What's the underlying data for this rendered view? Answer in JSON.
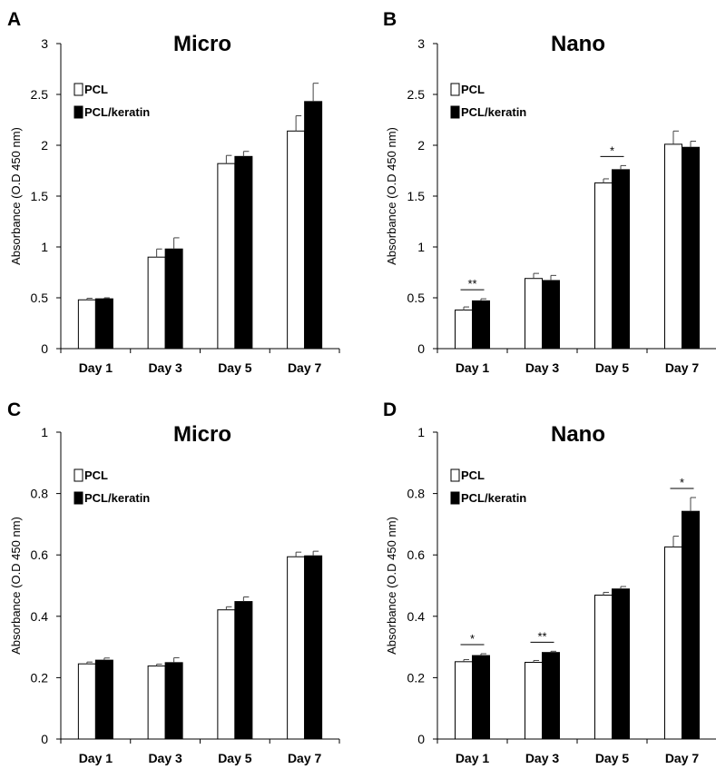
{
  "chart_data": [
    {
      "panel": "A",
      "type": "bar",
      "title": "Micro",
      "xlabel": "",
      "ylabel": "Absorbance (O.D 450 nm)",
      "ylim": [
        0,
        3
      ],
      "yticks": [
        "0",
        "0.5",
        "1",
        "1.5",
        "2",
        "2.5",
        "3"
      ],
      "ytick_values": [
        0,
        0.5,
        1,
        1.5,
        2,
        2.5,
        3
      ],
      "categories": [
        "Day 1",
        "Day 3",
        "Day 5",
        "Day 7"
      ],
      "legend_position": "top-left",
      "series": [
        {
          "name": "PCL",
          "fill": "#ffffff",
          "values": [
            0.48,
            0.9,
            1.82,
            2.14
          ],
          "errors": [
            0.015,
            0.08,
            0.08,
            0.15
          ]
        },
        {
          "name": "PCL/keratin",
          "fill": "#000000",
          "values": [
            0.49,
            0.98,
            1.89,
            2.43
          ],
          "errors": [
            0.01,
            0.11,
            0.05,
            0.18
          ]
        }
      ],
      "significance": []
    },
    {
      "panel": "B",
      "type": "bar",
      "title": "Nano",
      "xlabel": "",
      "ylabel": "Absorbance (O.D 450 nm)",
      "ylim": [
        0,
        3
      ],
      "yticks": [
        "0",
        "0.5",
        "1",
        "1.5",
        "2",
        "2.5",
        "3"
      ],
      "ytick_values": [
        0,
        0.5,
        1,
        1.5,
        2,
        2.5,
        3
      ],
      "categories": [
        "Day 1",
        "Day 3",
        "Day 5",
        "Day 7"
      ],
      "legend_position": "top-left",
      "series": [
        {
          "name": "PCL",
          "fill": "#ffffff",
          "values": [
            0.38,
            0.69,
            1.63,
            2.01
          ],
          "errors": [
            0.03,
            0.05,
            0.04,
            0.13
          ]
        },
        {
          "name": "PCL/keratin",
          "fill": "#000000",
          "values": [
            0.47,
            0.67,
            1.76,
            1.98
          ],
          "errors": [
            0.02,
            0.05,
            0.04,
            0.06
          ]
        }
      ],
      "significance": [
        {
          "category_index": 0,
          "label": "**"
        },
        {
          "category_index": 2,
          "label": "*"
        }
      ]
    },
    {
      "panel": "C",
      "type": "bar",
      "title": "Micro",
      "xlabel": "",
      "ylabel": "Absorbance (O.D 450 nm)",
      "ylim": [
        0,
        1
      ],
      "yticks": [
        "0",
        "0.2",
        "0.4",
        "0.6",
        "0.8",
        "1"
      ],
      "ytick_values": [
        0,
        0.2,
        0.4,
        0.6,
        0.8,
        1
      ],
      "categories": [
        "Day 1",
        "Day 3",
        "Day 5",
        "Day 7"
      ],
      "legend_position": "top-left",
      "series": [
        {
          "name": "PCL",
          "fill": "#ffffff",
          "values": [
            0.245,
            0.238,
            0.421,
            0.594
          ],
          "errors": [
            0.006,
            0.006,
            0.01,
            0.015
          ]
        },
        {
          "name": "PCL/keratin",
          "fill": "#000000",
          "values": [
            0.257,
            0.249,
            0.448,
            0.597
          ],
          "errors": [
            0.007,
            0.016,
            0.015,
            0.015
          ]
        }
      ],
      "significance": []
    },
    {
      "panel": "D",
      "type": "bar",
      "title": "Nano",
      "xlabel": "",
      "ylabel": "Absorbance (O.D 450 nm)",
      "ylim": [
        0,
        1
      ],
      "yticks": [
        "0",
        "0.2",
        "0.4",
        "0.6",
        "0.8",
        "1"
      ],
      "ytick_values": [
        0,
        0.2,
        0.4,
        0.6,
        0.8,
        1
      ],
      "categories": [
        "Day 1",
        "Day 3",
        "Day 5",
        "Day 7"
      ],
      "legend_position": "top-left",
      "series": [
        {
          "name": "PCL",
          "fill": "#ffffff",
          "values": [
            0.252,
            0.25,
            0.469,
            0.626
          ],
          "errors": [
            0.007,
            0.006,
            0.009,
            0.035
          ]
        },
        {
          "name": "PCL/keratin",
          "fill": "#000000",
          "values": [
            0.272,
            0.282,
            0.489,
            0.742
          ],
          "errors": [
            0.006,
            0.004,
            0.008,
            0.045
          ]
        }
      ],
      "significance": [
        {
          "category_index": 0,
          "label": "*"
        },
        {
          "category_index": 1,
          "label": "**"
        },
        {
          "category_index": 3,
          "label": "*"
        }
      ]
    }
  ]
}
